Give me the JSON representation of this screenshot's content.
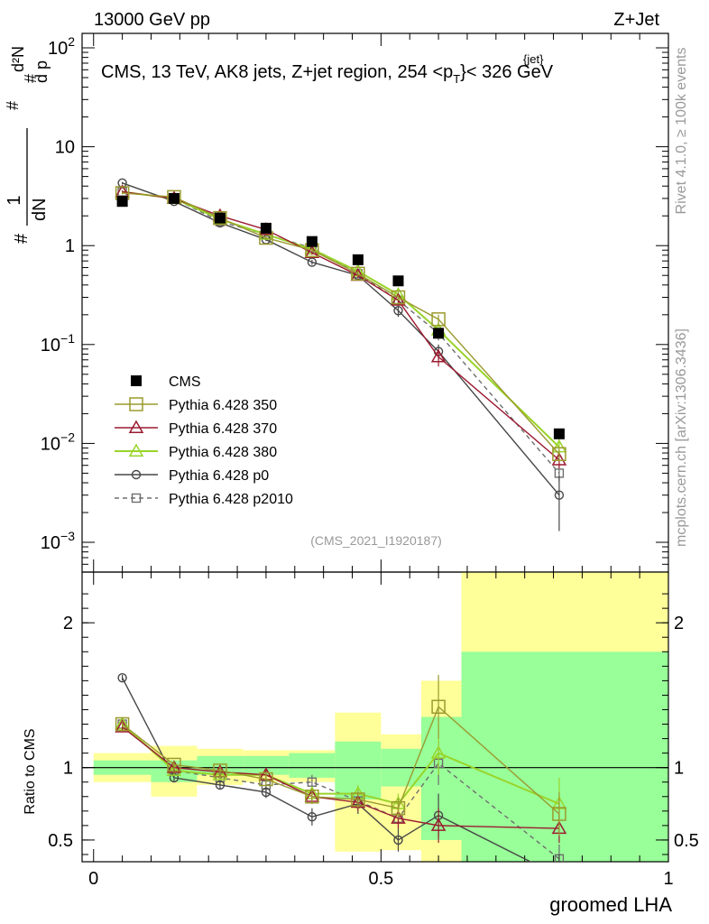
{
  "header": {
    "left": "13000 GeV pp",
    "right": "Z+Jet"
  },
  "plot_title": "CMS, 13 TeV, AK8 jets, Z+jet region, 254 <p",
  "plot_title_sup": "{jet}",
  "plot_title_sub": "T",
  "plot_title_end": "}< 326 GeV",
  "y_axis_label": {
    "hash": "#",
    "one": "1",
    "dN": "dN",
    "d2N": "d²N",
    "dpT": "d p",
    "T": "T",
    "dlambda": "dλ"
  },
  "side_labels": {
    "rivet": "Rivet 4.1.0, ≥ 100k events",
    "mcplots": "mcplots.cern.ch [arXiv:1306.3436]"
  },
  "analysis_id": "(CMS_2021_I1920187)",
  "ratio_ylabel": "Ratio to CMS",
  "colors": {
    "data": "#000000",
    "p350": "#9a9a2e",
    "p370": "#9b1b30",
    "p380": "#99d42a",
    "p0": "#464646",
    "p2010": "#6e6e6e",
    "band_inner": "#99ff99",
    "band_outer": "#ffff99"
  },
  "chart_data": [
    {
      "type": "line",
      "panel": "main",
      "yscale": "log",
      "ylim": [
        0.0005,
        140
      ],
      "xlim": [
        -0.02,
        1.0
      ],
      "yticks": [
        {
          "v": 0.001,
          "base": "10",
          "exp": "−3"
        },
        {
          "v": 0.01,
          "base": "10",
          "exp": "−2"
        },
        {
          "v": 0.1,
          "base": "10",
          "exp": "−1"
        },
        {
          "v": 1,
          "base": "1",
          "exp": ""
        },
        {
          "v": 10,
          "base": "10",
          "exp": ""
        },
        {
          "v": 100,
          "base": "10",
          "exp": "2"
        }
      ],
      "x": [
        0.05,
        0.14,
        0.22,
        0.3,
        0.38,
        0.46,
        0.53,
        0.6,
        0.81
      ],
      "series": [
        {
          "key": "data",
          "name": "CMS",
          "marker": "filled-square",
          "values": [
            2.8,
            3.0,
            1.9,
            1.5,
            1.1,
            0.72,
            0.44,
            0.13,
            0.0125
          ],
          "errors": [
            0,
            0,
            0,
            0,
            0,
            0,
            0,
            0,
            0
          ]
        },
        {
          "key": "p350",
          "name": "Pythia 6.428 350",
          "marker": "open-square",
          "dash": false,
          "values": [
            3.4,
            3.1,
            1.9,
            1.2,
            0.9,
            0.52,
            0.3,
            0.18,
            0.0078
          ],
          "errors": [
            0.1,
            0.1,
            0.05,
            0.04,
            0.04,
            0.03,
            0.02,
            0.02,
            0.001
          ]
        },
        {
          "key": "p370",
          "name": "Pythia 6.428 370",
          "marker": "open-triangle",
          "dash": false,
          "values": [
            3.5,
            3.0,
            2.0,
            1.45,
            0.85,
            0.5,
            0.28,
            0.075,
            0.0068
          ],
          "errors": [
            0.1,
            0.1,
            0.05,
            0.04,
            0.04,
            0.03,
            0.03,
            0.015,
            0.0012
          ]
        },
        {
          "key": "p380",
          "name": "Pythia 6.428 380",
          "marker": "open-triangle",
          "dash": false,
          "values": [
            3.5,
            3.0,
            1.85,
            1.3,
            0.92,
            0.55,
            0.32,
            0.14,
            0.0092
          ],
          "errors": [
            0.1,
            0.1,
            0.05,
            0.04,
            0.04,
            0.03,
            0.03,
            0.02,
            0.002
          ]
        },
        {
          "key": "p0",
          "name": "Pythia 6.428 p0",
          "marker": "open-circle",
          "dash": false,
          "values": [
            4.3,
            2.8,
            1.7,
            1.15,
            0.68,
            0.5,
            0.22,
            0.085,
            0.003
          ],
          "errors": [
            0.1,
            0.1,
            0.05,
            0.04,
            0.04,
            0.03,
            0.03,
            0.015,
            0.0017
          ]
        },
        {
          "key": "p2010",
          "name": "Pythia 6.428 p2010",
          "marker": "open-square-small",
          "dash": true,
          "values": [
            3.5,
            3.0,
            1.75,
            1.3,
            0.95,
            0.52,
            0.28,
            0.13,
            0.005
          ],
          "errors": [
            0.1,
            0.1,
            0.05,
            0.04,
            0.04,
            0.03,
            0.03,
            0.02,
            0.0009
          ]
        }
      ]
    },
    {
      "type": "line",
      "panel": "ratio",
      "ylabel": "Ratio to CMS",
      "xlabel": "groomed LHA",
      "ylim": [
        0.35,
        2.35
      ],
      "xlim": [
        -0.02,
        1.0
      ],
      "yticks": [
        {
          "v": 0.5,
          "label": "0.5"
        },
        {
          "v": 1,
          "label": "1"
        },
        {
          "v": 2,
          "label": "2"
        }
      ],
      "xticks": [
        {
          "v": 0,
          "label": "0"
        },
        {
          "v": 0.5,
          "label": "0.5"
        },
        {
          "v": 1,
          "label": "1"
        }
      ],
      "bands": [
        {
          "x0": 0.0,
          "x1": 0.1,
          "inner": [
            0.95,
            1.05
          ],
          "outer": [
            0.9,
            1.1
          ]
        },
        {
          "x0": 0.1,
          "x1": 0.18,
          "inner": [
            0.9,
            1.05
          ],
          "outer": [
            0.8,
            1.15
          ]
        },
        {
          "x0": 0.18,
          "x1": 0.26,
          "inner": [
            0.95,
            1.08
          ],
          "outer": [
            0.88,
            1.13
          ]
        },
        {
          "x0": 0.26,
          "x1": 0.34,
          "inner": [
            0.95,
            1.08
          ],
          "outer": [
            0.9,
            1.12
          ]
        },
        {
          "x0": 0.34,
          "x1": 0.42,
          "inner": [
            0.93,
            1.1
          ],
          "outer": [
            0.9,
            1.12
          ]
        },
        {
          "x0": 0.42,
          "x1": 0.5,
          "inner": [
            0.78,
            1.18
          ],
          "outer": [
            0.42,
            1.38
          ]
        },
        {
          "x0": 0.5,
          "x1": 0.57,
          "inner": [
            0.87,
            1.13
          ],
          "outer": [
            0.43,
            1.23
          ]
        },
        {
          "x0": 0.57,
          "x1": 0.64,
          "inner": [
            0.5,
            1.35
          ],
          "outer": [
            0.35,
            1.6
          ]
        },
        {
          "x0": 0.64,
          "x1": 1.0,
          "inner": [
            0.35,
            1.8
          ],
          "outer": [
            0.35,
            2.35
          ]
        }
      ],
      "x": [
        0.05,
        0.14,
        0.22,
        0.3,
        0.38,
        0.46,
        0.53,
        0.6,
        0.81
      ],
      "series": [
        {
          "key": "p350",
          "values": [
            1.3,
            1.02,
            0.98,
            0.92,
            0.8,
            0.78,
            0.72,
            1.42,
            0.68
          ],
          "errors": [
            0.02,
            0.03,
            0.03,
            0.04,
            0.05,
            0.06,
            0.07,
            0.22,
            0.15
          ]
        },
        {
          "key": "p370",
          "values": [
            1.28,
            1.0,
            0.97,
            0.95,
            0.8,
            0.76,
            0.65,
            0.6,
            0.58
          ],
          "errors": [
            0.02,
            0.03,
            0.03,
            0.04,
            0.05,
            0.06,
            0.07,
            0.12,
            0.1
          ]
        },
        {
          "key": "p380",
          "values": [
            1.3,
            0.98,
            0.95,
            0.95,
            0.82,
            0.82,
            0.75,
            1.1,
            0.75
          ],
          "errors": [
            0.02,
            0.03,
            0.03,
            0.04,
            0.05,
            0.06,
            0.07,
            0.15,
            0.18
          ]
        },
        {
          "key": "p0",
          "values": [
            1.62,
            0.93,
            0.88,
            0.83,
            0.66,
            0.75,
            0.5,
            0.67,
            0.25
          ],
          "errors": [
            0.02,
            0.03,
            0.03,
            0.04,
            0.06,
            0.07,
            0.08,
            0.15,
            0.15
          ]
        },
        {
          "key": "p2010",
          "values": [
            1.3,
            0.98,
            0.93,
            0.88,
            0.9,
            0.77,
            0.65,
            1.03,
            0.37
          ],
          "errors": [
            0.02,
            0.03,
            0.03,
            0.04,
            0.05,
            0.06,
            0.07,
            0.15,
            0.1
          ]
        }
      ]
    }
  ]
}
